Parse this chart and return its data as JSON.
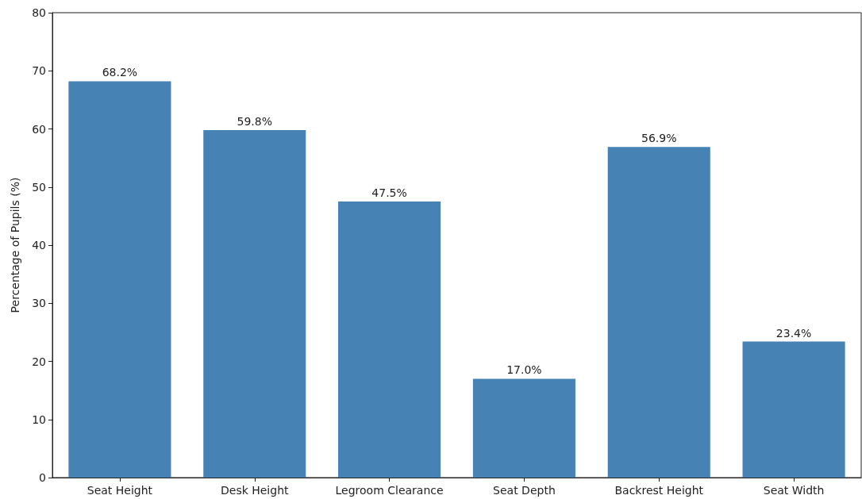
{
  "chart_data": {
    "type": "bar",
    "ylabel": "Percentage of Pupils (%)",
    "categories": [
      "Seat Height",
      "Desk Height",
      "Legroom Clearance",
      "Seat Depth",
      "Backrest Height",
      "Seat Width"
    ],
    "values": [
      68.2,
      59.8,
      47.5,
      17.0,
      56.9,
      23.4
    ],
    "value_labels": [
      "68.2%",
      "59.8%",
      "47.5%",
      "17.0%",
      "56.9%",
      "23.4%"
    ],
    "color": "#4682b4",
    "ylim": [
      0,
      80
    ],
    "yticks": [
      0,
      10,
      20,
      30,
      40,
      50,
      60,
      70,
      80
    ],
    "grid": false
  }
}
